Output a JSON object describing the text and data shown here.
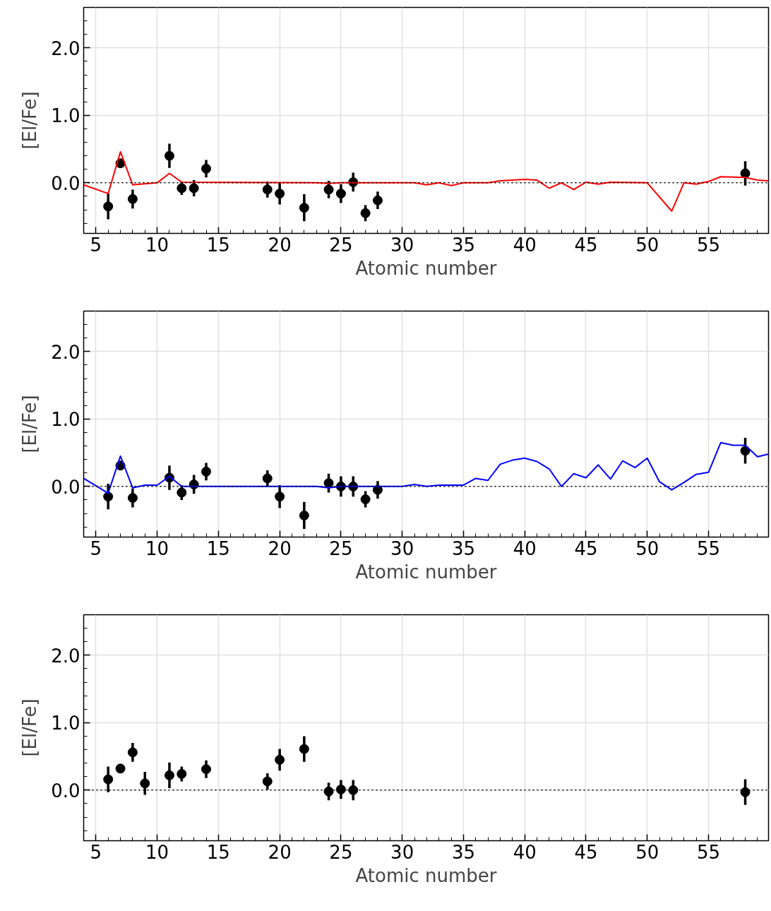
{
  "chart_data": [
    {
      "type": "scatter",
      "xlabel": "Atomic number",
      "ylabel": "[El/Fe]",
      "xlim": [
        4,
        59.9
      ],
      "ylim": [
        -0.75,
        2.6
      ],
      "xticks": [
        5,
        10,
        15,
        20,
        25,
        30,
        35,
        40,
        45,
        50,
        55
      ],
      "yticks": [
        {
          "value": 0,
          "label": "0.0"
        },
        {
          "value": 1,
          "label": "1.0"
        },
        {
          "value": 2,
          "label": "2.0"
        }
      ],
      "grid": true,
      "ref_lines": [
        {
          "axis": "y",
          "value": 0,
          "color": "#000000",
          "line_style": "dotted"
        }
      ],
      "series": [
        {
          "marker": "circle",
          "color": "#000000",
          "x": [
            6,
            7,
            8,
            11,
            12,
            13,
            14,
            19,
            20,
            22,
            24,
            25,
            26,
            27,
            28,
            58
          ],
          "values": [
            -0.35,
            0.29,
            -0.24,
            0.4,
            -0.08,
            -0.08,
            0.21,
            -0.1,
            -0.16,
            -0.37,
            -0.1,
            -0.16,
            0.01,
            -0.45,
            -0.26,
            0.14
          ],
          "errors": [
            0.19,
            0.03,
            0.14,
            0.18,
            0.1,
            0.12,
            0.13,
            0.12,
            0.16,
            0.2,
            0.13,
            0.14,
            0.14,
            0.12,
            0.13,
            0.18
          ]
        },
        {
          "type": "line",
          "color": "#ff0000",
          "line_style": "solid",
          "x": [
            4,
            6,
            7,
            8,
            10,
            11,
            12,
            23,
            24,
            25,
            31,
            32,
            33,
            34,
            35,
            37,
            38,
            39,
            40,
            41,
            42,
            43,
            44,
            45,
            46,
            47,
            50,
            52,
            53,
            54,
            55,
            56,
            58,
            59,
            59.9
          ],
          "values": [
            -0.03,
            -0.16,
            0.46,
            -0.03,
            0,
            0.14,
            0.01,
            0,
            -0.01,
            0,
            0,
            -0.03,
            0,
            -0.04,
            0,
            0,
            0.03,
            0.04,
            0.05,
            0.04,
            -0.08,
            0,
            -0.1,
            0.01,
            -0.02,
            0.01,
            0,
            -0.42,
            0,
            -0.02,
            0.02,
            0.09,
            0.08,
            0.04,
            0.03
          ]
        }
      ]
    },
    {
      "type": "scatter",
      "xlabel": "Atomic number",
      "ylabel": "[El/Fe]",
      "xlim": [
        4,
        59.9
      ],
      "ylim": [
        -0.75,
        2.6
      ],
      "xticks": [
        5,
        10,
        15,
        20,
        25,
        30,
        35,
        40,
        45,
        50,
        55
      ],
      "yticks": [
        {
          "value": 0,
          "label": "0.0"
        },
        {
          "value": 1,
          "label": "1.0"
        },
        {
          "value": 2,
          "label": "2.0"
        }
      ],
      "grid": true,
      "ref_lines": [
        {
          "axis": "y",
          "value": 0,
          "color": "#000000",
          "line_style": "dotted"
        }
      ],
      "series": [
        {
          "marker": "circle",
          "color": "#000000",
          "x": [
            6,
            7,
            8,
            11,
            12,
            13,
            14,
            19,
            20,
            22,
            24,
            25,
            26,
            27,
            28,
            58
          ],
          "values": [
            -0.15,
            0.31,
            -0.17,
            0.13,
            -0.09,
            0.03,
            0.22,
            0.12,
            -0.15,
            -0.43,
            0.05,
            0,
            0,
            -0.19,
            -0.05,
            0.53
          ],
          "errors": [
            0.19,
            0.03,
            0.14,
            0.18,
            0.11,
            0.14,
            0.13,
            0.12,
            0.17,
            0.2,
            0.14,
            0.15,
            0.15,
            0.12,
            0.13,
            0.19
          ]
        },
        {
          "type": "line",
          "color": "#0000ff",
          "line_style": "solid",
          "x": [
            4,
            6,
            7,
            8,
            9,
            10,
            11,
            12,
            23,
            24,
            25,
            30,
            31,
            32,
            33,
            34,
            35,
            36,
            37,
            38,
            39,
            40,
            41,
            42,
            43,
            44,
            45,
            46,
            47,
            48,
            49,
            50,
            51,
            52,
            53,
            54,
            55,
            56,
            57,
            58,
            59,
            59.9
          ],
          "values": [
            0.12,
            -0.1,
            0.45,
            -0.02,
            0.02,
            0.02,
            0.15,
            0,
            0,
            -0.02,
            0,
            0,
            0.03,
            0,
            0.02,
            0.02,
            0.02,
            0.12,
            0.09,
            0.33,
            0.39,
            0.42,
            0.37,
            0.26,
            0,
            0.19,
            0.13,
            0.32,
            0.11,
            0.38,
            0.28,
            0.42,
            0.07,
            -0.05,
            0.06,
            0.18,
            0.21,
            0.65,
            0.61,
            0.61,
            0.44,
            0.48
          ]
        }
      ]
    },
    {
      "type": "scatter",
      "xlabel": "Atomic number",
      "ylabel": "[El/Fe]",
      "xlim": [
        4,
        59.9
      ],
      "ylim": [
        -0.75,
        2.6
      ],
      "xticks": [
        5,
        10,
        15,
        20,
        25,
        30,
        35,
        40,
        45,
        50,
        55
      ],
      "yticks": [
        {
          "value": 0,
          "label": "0.0"
        },
        {
          "value": 1,
          "label": "1.0"
        },
        {
          "value": 2,
          "label": "2.0"
        }
      ],
      "grid": true,
      "ref_lines": [
        {
          "axis": "y",
          "value": 0,
          "color": "#000000",
          "line_style": "dotted"
        }
      ],
      "series": [
        {
          "marker": "circle",
          "color": "#000000",
          "x": [
            6,
            7,
            8,
            9,
            11,
            12,
            14,
            19,
            20,
            22,
            24,
            25,
            26,
            58
          ],
          "values": [
            0.16,
            0.32,
            0.56,
            0.1,
            0.22,
            0.24,
            0.31,
            0.13,
            0.45,
            0.61,
            -0.02,
            0.01,
            0,
            -0.03
          ],
          "errors": [
            0.19,
            null,
            0.14,
            0.17,
            0.19,
            0.11,
            0.13,
            0.12,
            0.16,
            0.19,
            0.13,
            0.14,
            0.15,
            0.19
          ]
        }
      ]
    }
  ]
}
